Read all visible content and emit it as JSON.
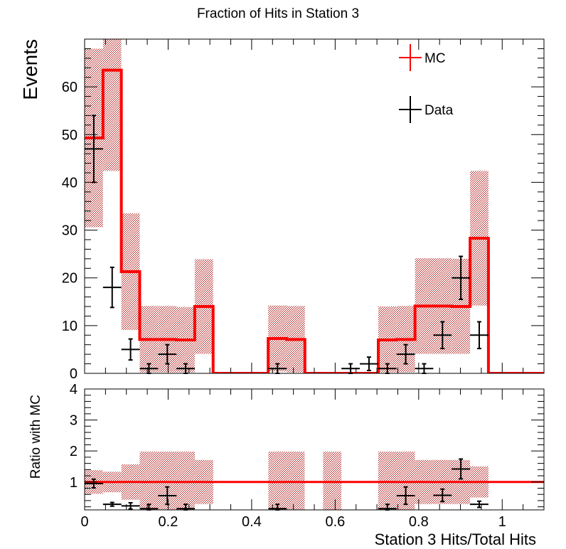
{
  "chart_data": [
    {
      "type": "histogram",
      "title": "Fraction of Hits in Station 3",
      "ylabel": "Events",
      "xlim": [
        0,
        1.1
      ],
      "ylim": [
        0,
        70
      ],
      "yticks": [
        0,
        10,
        20,
        30,
        40,
        50,
        60
      ],
      "bin_edges": [
        0,
        0.044,
        0.0879,
        0.1319,
        0.1758,
        0.2198,
        0.2637,
        0.3077,
        0.3516,
        0.3956,
        0.4396,
        0.4835,
        0.5275,
        0.5714,
        0.6154,
        0.6593,
        0.7033,
        0.7473,
        0.7912,
        0.8352,
        0.8791,
        0.9231,
        0.967,
        1.011,
        1.0549,
        1.0989
      ],
      "legend": {
        "position": "top-right",
        "entries": [
          "MC",
          "Data"
        ]
      },
      "series": [
        {
          "name": "MC",
          "color": "#ff0000",
          "style": "step",
          "values": [
            49.3,
            63.5,
            21.3,
            7.1,
            7.1,
            7.0,
            14.0,
            0,
            0,
            0,
            7.3,
            7.1,
            0,
            0,
            0,
            0,
            7.0,
            7.1,
            14.1,
            14.1,
            14.0,
            28.3,
            0,
            0,
            0
          ],
          "band_low": [
            30.6,
            42.4,
            9.1,
            0.2,
            0.2,
            0.2,
            4.1,
            0,
            0,
            0,
            0.4,
            0.2,
            0,
            0,
            0,
            0,
            0.2,
            0.2,
            4.1,
            4.1,
            4.1,
            14.2,
            0,
            0,
            0
          ],
          "band_high": [
            68.0,
            70.0,
            33.5,
            14.1,
            14.1,
            13.9,
            23.9,
            0,
            0,
            0,
            14.2,
            14.1,
            0,
            0,
            0,
            0,
            14.0,
            14.1,
            24.1,
            24.1,
            24.0,
            42.4,
            0,
            0,
            0
          ]
        },
        {
          "name": "Data",
          "color": "#000000",
          "style": "points",
          "points": [
            {
              "x": 0.022,
              "y": 47,
              "xerr": 0.022,
              "yerr": 7
            },
            {
              "x": 0.066,
              "y": 18,
              "xerr": 0.022,
              "yerr": 4.2
            },
            {
              "x": 0.11,
              "y": 5,
              "xerr": 0.022,
              "yerr": 2.2
            },
            {
              "x": 0.154,
              "y": 1,
              "xerr": 0.022,
              "yerr": 1
            },
            {
              "x": 0.198,
              "y": 4,
              "xerr": 0.022,
              "yerr": 2
            },
            {
              "x": 0.242,
              "y": 1,
              "xerr": 0.022,
              "yerr": 1
            },
            {
              "x": 0.462,
              "y": 1,
              "xerr": 0.022,
              "yerr": 1
            },
            {
              "x": 0.637,
              "y": 1,
              "xerr": 0.022,
              "yerr": 1
            },
            {
              "x": 0.681,
              "y": 2,
              "xerr": 0.022,
              "yerr": 1.4
            },
            {
              "x": 0.725,
              "y": 1,
              "xerr": 0.022,
              "yerr": 1
            },
            {
              "x": 0.769,
              "y": 4,
              "xerr": 0.022,
              "yerr": 2
            },
            {
              "x": 0.813,
              "y": 1,
              "xerr": 0.022,
              "yerr": 1
            },
            {
              "x": 0.857,
              "y": 8,
              "xerr": 0.022,
              "yerr": 2.8
            },
            {
              "x": 0.901,
              "y": 20,
              "xerr": 0.022,
              "yerr": 4.5
            },
            {
              "x": 0.945,
              "y": 8,
              "xerr": 0.022,
              "yerr": 2.8
            }
          ]
        }
      ]
    },
    {
      "type": "ratio",
      "ylabel": "Ratio with MC",
      "xlabel": "Station 3 Hits/Total Hits",
      "xlim": [
        0,
        1.1
      ],
      "ylim": [
        0.1,
        4
      ],
      "yticks": [
        1,
        2,
        3,
        4
      ],
      "xticks": [
        {
          "v": 0,
          "label": "0"
        },
        {
          "v": 0.2,
          "label": "0.2"
        },
        {
          "v": 0.4,
          "label": "0.4"
        },
        {
          "v": 0.6,
          "label": "0.6"
        },
        {
          "v": 0.8,
          "label": "0.8"
        },
        {
          "v": 1.0,
          "label": "1"
        }
      ],
      "reference_line": {
        "y": 1,
        "color": "#ff0000"
      },
      "band": [
        {
          "x0": 0,
          "x1": 0.044,
          "lo": 0.62,
          "hi": 1.38
        },
        {
          "x0": 0.044,
          "x1": 0.088,
          "lo": 0.67,
          "hi": 1.33
        },
        {
          "x0": 0.088,
          "x1": 0.132,
          "lo": 0.43,
          "hi": 1.57
        },
        {
          "x0": 0.132,
          "x1": 0.264,
          "lo": 0.03,
          "hi": 1.98
        },
        {
          "x0": 0.264,
          "x1": 0.308,
          "lo": 0.29,
          "hi": 1.71
        },
        {
          "x0": 0.44,
          "x1": 0.527,
          "lo": 0.03,
          "hi": 1.98
        },
        {
          "x0": 0.571,
          "x1": 0.615,
          "lo": 0.03,
          "hi": 1.98
        },
        {
          "x0": 0.703,
          "x1": 0.791,
          "lo": 0.03,
          "hi": 1.98
        },
        {
          "x0": 0.791,
          "x1": 0.923,
          "lo": 0.29,
          "hi": 1.71
        },
        {
          "x0": 0.923,
          "x1": 0.967,
          "lo": 0.5,
          "hi": 1.5
        }
      ],
      "points": [
        {
          "x": 0.022,
          "y": 0.95,
          "xerr": 0.022,
          "yerr": 0.14
        },
        {
          "x": 0.066,
          "y": 0.28,
          "xerr": 0.022,
          "yerr": 0.06
        },
        {
          "x": 0.11,
          "y": 0.23,
          "xerr": 0.022,
          "yerr": 0.1
        },
        {
          "x": 0.154,
          "y": 0.14,
          "xerr": 0.022,
          "yerr": 0.14
        },
        {
          "x": 0.198,
          "y": 0.56,
          "xerr": 0.022,
          "yerr": 0.28
        },
        {
          "x": 0.242,
          "y": 0.14,
          "xerr": 0.022,
          "yerr": 0.14
        },
        {
          "x": 0.462,
          "y": 0.14,
          "xerr": 0.022,
          "yerr": 0.14
        },
        {
          "x": 0.725,
          "y": 0.14,
          "xerr": 0.022,
          "yerr": 0.14
        },
        {
          "x": 0.769,
          "y": 0.56,
          "xerr": 0.022,
          "yerr": 0.28
        },
        {
          "x": 0.857,
          "y": 0.57,
          "xerr": 0.022,
          "yerr": 0.2
        },
        {
          "x": 0.901,
          "y": 1.42,
          "xerr": 0.022,
          "yerr": 0.32
        },
        {
          "x": 0.945,
          "y": 0.28,
          "xerr": 0.022,
          "yerr": 0.1
        }
      ]
    }
  ]
}
